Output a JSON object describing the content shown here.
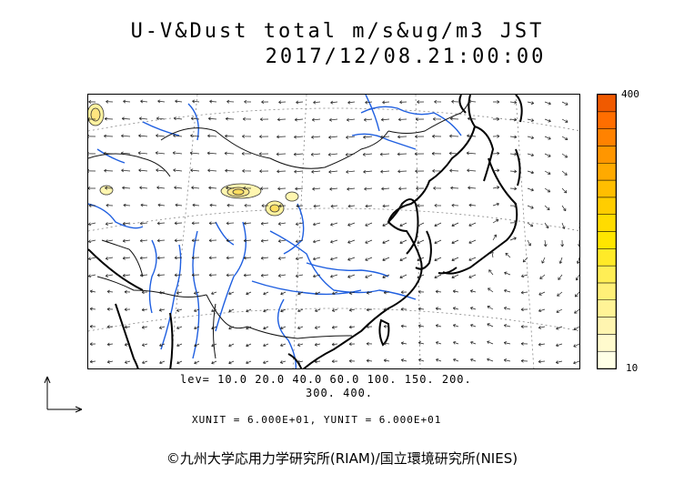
{
  "title_line1": "U-V&Dust total m/s&ug/m3 JST",
  "title_line2": "2017/12/08.21:00:00",
  "colorbar": {
    "max_label": "400",
    "min_label": "10",
    "colors": [
      "#ffffe6",
      "#fffacd",
      "#fff5b0",
      "#fff396",
      "#fff078",
      "#ffee55",
      "#ffea28",
      "#ffe600",
      "#ffdc00",
      "#ffcd00",
      "#ffbe00",
      "#ffaa00",
      "#ff9600",
      "#ff8200",
      "#ff6e00",
      "#f05a00"
    ]
  },
  "levels_line1": "lev= 10.0 20.0 40.0 60.0 100. 150. 200.",
  "levels_line2": "300. 400.",
  "units_text": "XUNIT = 6.000E+01, YUNIT = 6.000E+01",
  "credit": "©九州大学応用力学研究所(RIAM)/国立環境研究所(NIES)",
  "colors": {
    "coast": "#000000",
    "river": "#1f5fe0",
    "border": "#111111",
    "graticule": "#888888",
    "arrow": "#222222"
  }
}
